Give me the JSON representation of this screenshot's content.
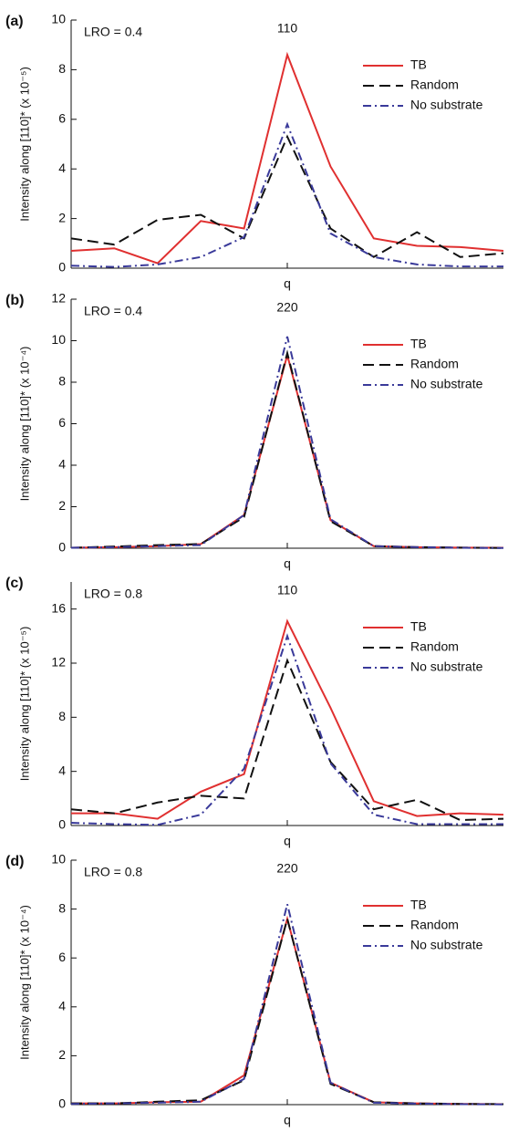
{
  "chart_data": [
    {
      "type": "line",
      "panel_label": "(a)",
      "annotation": "LRO = 0.4",
      "peak_label": "110",
      "xlabel": "q",
      "ylabel": "Intensity along [110]* (x 10⁻⁵)",
      "categories": [
        null,
        null,
        null,
        null,
        null,
        null,
        null,
        null,
        null,
        null,
        null
      ],
      "ylim": [
        0,
        10
      ],
      "yticks": [
        0,
        2,
        4,
        6,
        8,
        10
      ],
      "legend": "upper right",
      "series": [
        {
          "name": "TB",
          "color": "#e03030",
          "dash": "solid",
          "values": [
            0.7,
            0.8,
            0.2,
            1.9,
            1.6,
            8.6,
            4.1,
            1.2,
            0.9,
            0.85,
            0.7
          ]
        },
        {
          "name": "Random",
          "color": "#111111",
          "dash": "dashed",
          "values": [
            1.2,
            0.95,
            1.95,
            2.15,
            1.2,
            5.3,
            1.6,
            0.45,
            1.45,
            0.45,
            0.6
          ]
        },
        {
          "name": "No substrate",
          "color": "#3a3a9a",
          "dash": "dashdot",
          "values": [
            0.1,
            0.05,
            0.15,
            0.45,
            1.25,
            5.8,
            1.4,
            0.45,
            0.15,
            0.07,
            0.07
          ]
        }
      ]
    },
    {
      "type": "line",
      "panel_label": "(b)",
      "annotation": "LRO = 0.4",
      "peak_label": "220",
      "xlabel": "q",
      "ylabel": "Intensity along [110]* (x 10⁻⁴)",
      "categories": [
        null,
        null,
        null,
        null,
        null,
        null,
        null,
        null,
        null,
        null,
        null
      ],
      "ylim": [
        0,
        12
      ],
      "yticks": [
        0,
        2,
        4,
        6,
        8,
        10,
        12
      ],
      "legend": "upper right",
      "series": [
        {
          "name": "TB",
          "color": "#e03030",
          "dash": "solid",
          "values": [
            0.02,
            0.05,
            0.1,
            0.2,
            1.6,
            9.3,
            1.35,
            0.1,
            0.05,
            0.03,
            0.02
          ]
        },
        {
          "name": "Random",
          "color": "#111111",
          "dash": "dashed",
          "values": [
            0.02,
            0.08,
            0.15,
            0.2,
            1.5,
            9.4,
            1.3,
            0.1,
            0.05,
            0.03,
            0.01
          ]
        },
        {
          "name": "No substrate",
          "color": "#3a3a9a",
          "dash": "dashdot",
          "values": [
            0.02,
            0.05,
            0.1,
            0.15,
            1.6,
            10.2,
            1.4,
            0.1,
            0.05,
            0.02,
            0.01
          ]
        }
      ]
    },
    {
      "type": "line",
      "panel_label": "(c)",
      "annotation": "LRO = 0.8",
      "peak_label": "110",
      "xlabel": "q",
      "ylabel": "Intensity along [110]* (x 10⁻⁵)",
      "categories": [
        null,
        null,
        null,
        null,
        null,
        null,
        null,
        null,
        null,
        null,
        null
      ],
      "ylim": [
        0,
        18
      ],
      "yticks": [
        0,
        4,
        8,
        12,
        16
      ],
      "legend": "upper right",
      "series": [
        {
          "name": "TB",
          "color": "#e03030",
          "dash": "solid",
          "values": [
            0.9,
            0.9,
            0.5,
            2.5,
            3.8,
            15.1,
            8.7,
            1.8,
            0.7,
            0.9,
            0.8
          ]
        },
        {
          "name": "Random",
          "color": "#111111",
          "dash": "dashed",
          "values": [
            1.2,
            0.9,
            1.7,
            2.2,
            2.0,
            12.2,
            4.7,
            1.2,
            1.9,
            0.4,
            0.5
          ]
        },
        {
          "name": "No substrate",
          "color": "#3a3a9a",
          "dash": "dashdot",
          "values": [
            0.2,
            0.1,
            0.05,
            0.8,
            4.2,
            14.0,
            4.6,
            0.8,
            0.1,
            0.1,
            0.1
          ]
        }
      ]
    },
    {
      "type": "line",
      "panel_label": "(d)",
      "annotation": "LRO = 0.8",
      "peak_label": "220",
      "xlabel": "q",
      "ylabel": "Intensity along [110]* (x 10⁻⁴)",
      "categories": [
        null,
        null,
        null,
        null,
        null,
        null,
        null,
        null,
        null,
        null,
        null
      ],
      "ylim": [
        0,
        10
      ],
      "yticks": [
        0,
        2,
        4,
        6,
        8,
        10
      ],
      "legend": "upper right",
      "series": [
        {
          "name": "TB",
          "color": "#e03030",
          "dash": "solid",
          "values": [
            0.05,
            0.05,
            0.1,
            0.12,
            1.2,
            7.6,
            0.9,
            0.1,
            0.05,
            0.03,
            0.02
          ]
        },
        {
          "name": "Random",
          "color": "#111111",
          "dash": "dashed",
          "values": [
            0.05,
            0.05,
            0.12,
            0.18,
            1.0,
            7.6,
            0.85,
            0.1,
            0.05,
            0.03,
            0.02
          ]
        },
        {
          "name": "No substrate",
          "color": "#3a3a9a",
          "dash": "dashdot",
          "values": [
            0.03,
            0.05,
            0.08,
            0.12,
            1.05,
            8.2,
            0.9,
            0.08,
            0.04,
            0.02,
            0.01
          ]
        }
      ]
    }
  ]
}
